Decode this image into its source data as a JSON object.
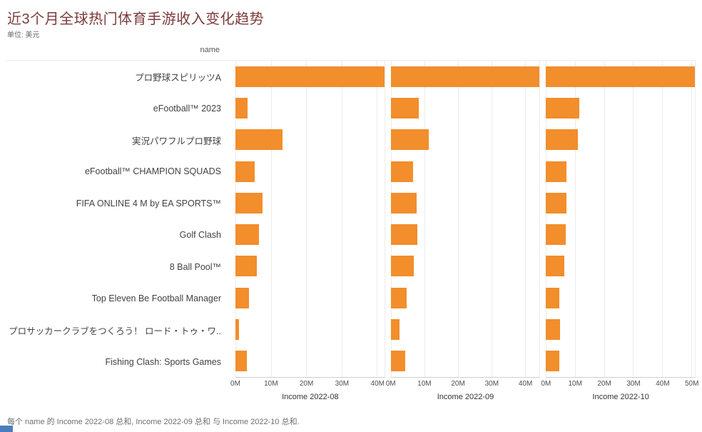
{
  "header": {
    "title": "近3个月全球热门体育手游收入变化趋势",
    "subtitle": "单位: 美元"
  },
  "footer": {
    "caption": "每个 name 的 Income 2022-08 总和, Income 2022-09 总和 与 Income 2022-10 总和."
  },
  "chart_data": {
    "type": "bar",
    "orientation": "horizontal",
    "title": "近3个月全球热门体育手游收入变化趋势",
    "subtitle": "单位: 美元",
    "row_header": "name",
    "unit": "M (美元)",
    "bar_color": "#f28e2b",
    "grid": true,
    "categories": [
      "プロ野球スピリッツA",
      "eFootball™ 2023",
      "実況パワフルプロ野球",
      "eFootball™ CHAMPION SQUADS",
      "FIFA ONLINE 4 M by EA SPORTS™",
      "Golf Clash",
      "8 Ball Pool™",
      "Top Eleven Be Football Manager",
      "プロサッカークラブをつくろう！ ロード・トゥ・ワ..",
      "Fishing Clash: Sports Games"
    ],
    "series": [
      {
        "name": "Income 2022-08",
        "xlim": [
          0,
          42.1
        ],
        "tick_values": [
          0,
          10,
          20,
          30,
          40
        ],
        "ticks": [
          "0M",
          "10M",
          "20M",
          "30M",
          "40M"
        ],
        "values": [
          42.1,
          3.4,
          13.3,
          5.5,
          7.6,
          6.7,
          6.1,
          3.8,
          1.1,
          3.2
        ]
      },
      {
        "name": "Income 2022-09",
        "xlim": [
          0,
          44.4
        ],
        "tick_values": [
          0,
          10,
          20,
          30,
          40
        ],
        "ticks": [
          "0M",
          "10M",
          "20M",
          "30M",
          "40M"
        ],
        "values": [
          44.4,
          8.4,
          11.3,
          6.7,
          7.8,
          8.0,
          6.9,
          4.8,
          2.7,
          4.4
        ]
      },
      {
        "name": "Income 2022-10",
        "xlim": [
          0,
          51.3
        ],
        "tick_values": [
          0,
          10,
          20,
          30,
          40,
          50
        ],
        "ticks": [
          "0M",
          "10M",
          "20M",
          "30M",
          "40M",
          "50M"
        ],
        "values": [
          51.3,
          11.4,
          10.9,
          7.0,
          7.0,
          6.8,
          6.3,
          4.6,
          4.8,
          4.6
        ]
      }
    ],
    "caption": "每个 name 的 Income 2022-08 总和, Income 2022-09 总和 与 Income 2022-10 总和."
  }
}
